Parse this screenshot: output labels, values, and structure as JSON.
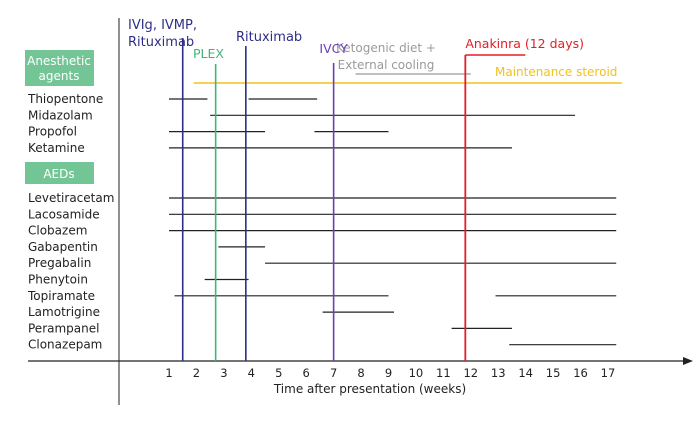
{
  "chart_data": {
    "type": "timeline",
    "xlabel": "Time after presentation (weeks)",
    "xticks": [
      1,
      2,
      3,
      4,
      5,
      6,
      7,
      8,
      9,
      10,
      11,
      12,
      13,
      14,
      15,
      16,
      17
    ],
    "groups": [
      {
        "name": "Anesthetic agents",
        "drugs": [
          {
            "name": "Thiopentone",
            "segments": [
              [
                1.0,
                2.4
              ],
              [
                3.9,
                6.4
              ]
            ]
          },
          {
            "name": "Midazolam",
            "segments": [
              [
                2.5,
                15.8
              ]
            ]
          },
          {
            "name": "Propofol",
            "segments": [
              [
                1.0,
                4.5
              ],
              [
                6.3,
                9.0
              ]
            ]
          },
          {
            "name": "Ketamine",
            "segments": [
              [
                1.0,
                13.5
              ]
            ]
          }
        ]
      },
      {
        "name": "AEDs",
        "drugs": [
          {
            "name": "Levetiracetam",
            "segments": [
              [
                1.0,
                17.3
              ]
            ]
          },
          {
            "name": "Lacosamide",
            "segments": [
              [
                1.0,
                17.3
              ]
            ]
          },
          {
            "name": "Clobazem",
            "segments": [
              [
                1.0,
                17.3
              ]
            ]
          },
          {
            "name": "Gabapentin",
            "segments": [
              [
                2.8,
                4.5
              ]
            ]
          },
          {
            "name": "Pregabalin",
            "segments": [
              [
                4.5,
                17.3
              ]
            ]
          },
          {
            "name": "Phenytoin",
            "segments": [
              [
                2.3,
                3.9
              ]
            ]
          },
          {
            "name": "Topiramate",
            "segments": [
              [
                1.2,
                9.0
              ],
              [
                12.9,
                17.3
              ]
            ]
          },
          {
            "name": "Lamotrigine",
            "segments": [
              [
                6.6,
                9.2
              ]
            ]
          },
          {
            "name": "Perampanel",
            "segments": [
              [
                11.3,
                13.5
              ]
            ]
          },
          {
            "name": "Clonazepam",
            "segments": [
              [
                13.4,
                17.3
              ]
            ]
          }
        ]
      }
    ],
    "events": [
      {
        "label": [
          "IVIg, IVMP,",
          "Rituximab"
        ],
        "x": 1.5,
        "color": "#2e2e8a"
      },
      {
        "label": [
          "PLEX"
        ],
        "x": 2.7,
        "color": "#3cb67a"
      },
      {
        "label": [
          "Rituximab"
        ],
        "x": 3.8,
        "color": "#2e2e8a"
      },
      {
        "label": [
          "IVCY"
        ],
        "x": 7.0,
        "color": "#6a3fb8"
      },
      {
        "label": [
          "Anakinra (12 days)"
        ],
        "x": 11.8,
        "color": "#e31e25"
      }
    ],
    "spans": [
      {
        "label": [
          "Ketogenic diet +",
          "External cooling"
        ],
        "start": 7.8,
        "end": 12.0,
        "color": "#9a9a9a"
      },
      {
        "label": [
          "Maintenance steroid"
        ],
        "start": 1.9,
        "end": 17.5,
        "color": "#f0c21b"
      }
    ],
    "colors": {
      "group_box": "#74c596",
      "axis": "#222222",
      "drug_line": "#222222"
    }
  }
}
